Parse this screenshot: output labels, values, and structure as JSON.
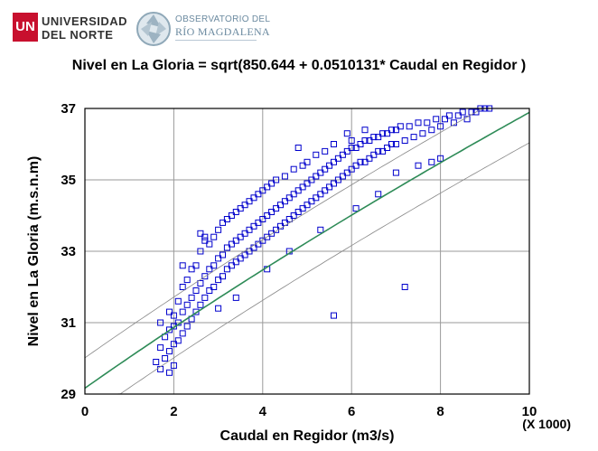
{
  "logos": {
    "un_mark": "UN",
    "un_line1": "UNIVERSIDAD",
    "un_line2": "DEL NORTE",
    "obs_line1": "OBSERVATORIO DEL",
    "obs_line2": "RÍO MAGDALENA"
  },
  "colors": {
    "points": "#0000cc",
    "fit_line": "#2e8b57",
    "pred_limits": "#888888",
    "grid": "#9a9a9a"
  },
  "chart_data": {
    "type": "scatter",
    "title": "Nivel en La Gloria = sqrt(850.644 + 0.0510131* Caudal en Regidor )",
    "xlabel": "Caudal en Regidor (m3/s)",
    "ylabel": "Nivel en La Gloria (m.s.n.m)",
    "x_multiplier_label": "(X 1000)",
    "x_unit_scale": 1000,
    "xlim": [
      0,
      10
    ],
    "ylim": [
      29,
      37
    ],
    "x_ticks": [
      0,
      2,
      4,
      6,
      8,
      10
    ],
    "y_ticks": [
      29,
      31,
      33,
      35,
      37
    ],
    "grid": true,
    "model": {
      "intercept": 850.644,
      "slope": 0.0510131,
      "form": "y = sqrt(a + b*x)"
    },
    "prediction_band_offset": 0.85,
    "series": [
      {
        "type": "points",
        "marker": "open-square"
      },
      {
        "type": "fitted-line"
      },
      {
        "type": "prediction-limits"
      }
    ],
    "points": [
      [
        1.6,
        29.9
      ],
      [
        1.7,
        30.3
      ],
      [
        1.7,
        29.7
      ],
      [
        1.8,
        30.6
      ],
      [
        1.8,
        30.0
      ],
      [
        1.9,
        30.8
      ],
      [
        1.9,
        30.2
      ],
      [
        1.9,
        29.6
      ],
      [
        2.0,
        30.9
      ],
      [
        2.0,
        30.4
      ],
      [
        2.0,
        31.2
      ],
      [
        2.0,
        29.8
      ],
      [
        2.1,
        31.0
      ],
      [
        2.1,
        30.5
      ],
      [
        2.1,
        31.6
      ],
      [
        2.2,
        31.3
      ],
      [
        2.2,
        30.7
      ],
      [
        2.2,
        32.0
      ],
      [
        2.3,
        31.5
      ],
      [
        2.3,
        30.9
      ],
      [
        2.3,
        32.2
      ],
      [
        2.4,
        31.7
      ],
      [
        2.4,
        31.1
      ],
      [
        2.4,
        32.5
      ],
      [
        2.5,
        31.9
      ],
      [
        2.5,
        31.3
      ],
      [
        2.5,
        32.6
      ],
      [
        2.6,
        32.1
      ],
      [
        2.6,
        31.5
      ],
      [
        2.6,
        33.0
      ],
      [
        2.7,
        32.3
      ],
      [
        2.7,
        31.7
      ],
      [
        2.7,
        33.3
      ],
      [
        2.8,
        32.5
      ],
      [
        2.8,
        31.9
      ],
      [
        2.8,
        33.2
      ],
      [
        2.9,
        32.6
      ],
      [
        2.9,
        32.0
      ],
      [
        2.9,
        33.4
      ],
      [
        3.0,
        32.8
      ],
      [
        3.0,
        32.2
      ],
      [
        3.0,
        33.6
      ],
      [
        3.1,
        32.9
      ],
      [
        3.1,
        32.3
      ],
      [
        3.1,
        33.8
      ],
      [
        3.2,
        33.1
      ],
      [
        3.2,
        32.5
      ],
      [
        3.2,
        33.9
      ],
      [
        3.3,
        33.2
      ],
      [
        3.3,
        32.6
      ],
      [
        3.3,
        34.0
      ],
      [
        3.4,
        33.3
      ],
      [
        3.4,
        32.7
      ],
      [
        3.4,
        34.1
      ],
      [
        3.5,
        33.4
      ],
      [
        3.5,
        32.8
      ],
      [
        3.5,
        34.2
      ],
      [
        3.6,
        33.5
      ],
      [
        3.6,
        32.9
      ],
      [
        3.6,
        34.3
      ],
      [
        3.7,
        33.6
      ],
      [
        3.7,
        33.0
      ],
      [
        3.7,
        34.4
      ],
      [
        3.8,
        33.7
      ],
      [
        3.8,
        33.1
      ],
      [
        3.8,
        34.5
      ],
      [
        3.9,
        33.8
      ],
      [
        3.9,
        33.2
      ],
      [
        3.9,
        34.6
      ],
      [
        4.0,
        33.9
      ],
      [
        4.0,
        33.3
      ],
      [
        4.0,
        34.7
      ],
      [
        4.1,
        34.0
      ],
      [
        4.1,
        33.4
      ],
      [
        4.1,
        34.8
      ],
      [
        4.2,
        34.1
      ],
      [
        4.2,
        33.5
      ],
      [
        4.2,
        34.9
      ],
      [
        4.3,
        34.2
      ],
      [
        4.3,
        33.6
      ],
      [
        4.3,
        35.0
      ],
      [
        4.4,
        34.3
      ],
      [
        4.4,
        33.7
      ],
      [
        4.5,
        34.4
      ],
      [
        4.5,
        33.8
      ],
      [
        4.5,
        35.1
      ],
      [
        4.6,
        34.5
      ],
      [
        4.6,
        33.9
      ],
      [
        4.7,
        34.6
      ],
      [
        4.7,
        34.0
      ],
      [
        4.7,
        35.3
      ],
      [
        4.8,
        34.7
      ],
      [
        4.8,
        34.1
      ],
      [
        4.9,
        34.8
      ],
      [
        4.9,
        34.2
      ],
      [
        4.9,
        35.4
      ],
      [
        5.0,
        34.9
      ],
      [
        5.0,
        34.3
      ],
      [
        5.0,
        35.5
      ],
      [
        5.1,
        35.0
      ],
      [
        5.1,
        34.4
      ],
      [
        5.2,
        35.1
      ],
      [
        5.2,
        34.5
      ],
      [
        5.2,
        35.7
      ],
      [
        5.3,
        35.2
      ],
      [
        5.3,
        34.6
      ],
      [
        5.4,
        35.3
      ],
      [
        5.4,
        34.7
      ],
      [
        5.4,
        35.8
      ],
      [
        5.5,
        35.4
      ],
      [
        5.5,
        34.8
      ],
      [
        5.6,
        35.5
      ],
      [
        5.6,
        34.9
      ],
      [
        5.6,
        36.0
      ],
      [
        5.7,
        35.6
      ],
      [
        5.7,
        35.0
      ],
      [
        5.8,
        35.7
      ],
      [
        5.8,
        35.1
      ],
      [
        5.9,
        35.8
      ],
      [
        5.9,
        35.2
      ],
      [
        6.0,
        35.9
      ],
      [
        6.0,
        35.3
      ],
      [
        6.0,
        36.1
      ],
      [
        6.1,
        35.9
      ],
      [
        6.1,
        35.4
      ],
      [
        6.2,
        36.0
      ],
      [
        6.2,
        35.5
      ],
      [
        6.3,
        36.1
      ],
      [
        6.3,
        35.5
      ],
      [
        6.4,
        36.1
      ],
      [
        6.4,
        35.6
      ],
      [
        6.5,
        36.2
      ],
      [
        6.5,
        35.7
      ],
      [
        6.6,
        36.2
      ],
      [
        6.6,
        35.8
      ],
      [
        6.7,
        36.3
      ],
      [
        6.7,
        35.8
      ],
      [
        6.8,
        36.3
      ],
      [
        6.8,
        35.9
      ],
      [
        6.9,
        36.4
      ],
      [
        6.9,
        36.0
      ],
      [
        7.0,
        36.4
      ],
      [
        7.0,
        36.0
      ],
      [
        7.1,
        36.5
      ],
      [
        7.2,
        36.1
      ],
      [
        7.3,
        36.5
      ],
      [
        7.4,
        36.2
      ],
      [
        7.5,
        36.6
      ],
      [
        7.6,
        36.3
      ],
      [
        7.7,
        36.6
      ],
      [
        7.8,
        36.4
      ],
      [
        7.9,
        36.7
      ],
      [
        8.0,
        36.5
      ],
      [
        8.1,
        36.7
      ],
      [
        8.2,
        36.8
      ],
      [
        8.3,
        36.6
      ],
      [
        8.4,
        36.8
      ],
      [
        8.5,
        36.9
      ],
      [
        8.6,
        36.7
      ],
      [
        8.7,
        36.9
      ],
      [
        8.8,
        36.9
      ],
      [
        8.9,
        37.0
      ],
      [
        9.0,
        37.0
      ],
      [
        9.1,
        37.0
      ],
      [
        2.6,
        33.5
      ],
      [
        2.7,
        33.4
      ],
      [
        3.0,
        31.4
      ],
      [
        3.4,
        31.7
      ],
      [
        4.1,
        32.5
      ],
      [
        4.6,
        33.0
      ],
      [
        5.3,
        33.6
      ],
      [
        5.6,
        31.2
      ],
      [
        6.1,
        34.2
      ],
      [
        6.6,
        34.6
      ],
      [
        7.2,
        32.0
      ],
      [
        7.0,
        35.2
      ],
      [
        7.5,
        35.4
      ],
      [
        7.8,
        35.5
      ],
      [
        8.0,
        35.6
      ],
      [
        6.3,
        36.4
      ],
      [
        5.9,
        36.3
      ],
      [
        4.8,
        35.9
      ],
      [
        2.2,
        32.6
      ],
      [
        1.9,
        31.3
      ],
      [
        1.7,
        31.0
      ]
    ]
  }
}
